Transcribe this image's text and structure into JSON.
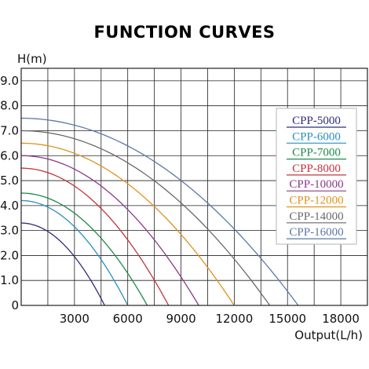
{
  "chart_data": {
    "type": "line",
    "title": "FUNCTION CURVES",
    "xlabel": "Output(L/h)",
    "ylabel": "H(m)",
    "xlim": [
      0,
      19500
    ],
    "ylim": [
      0,
      9.5
    ],
    "grid": true,
    "legend_position": "right",
    "x_ticks": [
      {
        "value": 3000,
        "label": "3000"
      },
      {
        "value": 6000,
        "label": "6000"
      },
      {
        "value": 9000,
        "label": "9000"
      },
      {
        "value": 12000,
        "label": "12000"
      },
      {
        "value": 15000,
        "label": "15000"
      },
      {
        "value": 18000,
        "label": "18000"
      }
    ],
    "y_ticks": [
      {
        "value": 0,
        "label": "0"
      },
      {
        "value": 1,
        "label": "1.0"
      },
      {
        "value": 2,
        "label": "2.0"
      },
      {
        "value": 3,
        "label": "3.0"
      },
      {
        "value": 4,
        "label": "4.0"
      },
      {
        "value": 5,
        "label": "5.0"
      },
      {
        "value": 6,
        "label": "6.0"
      },
      {
        "value": 7,
        "label": "7.0"
      },
      {
        "value": 8,
        "label": "8.0"
      },
      {
        "value": 9,
        "label": "9.0"
      }
    ],
    "series": [
      {
        "name": "CPP-5000",
        "color": "#2e2e78",
        "max_head": 3.3,
        "max_flow": 4700
      },
      {
        "name": "CPP-6000",
        "color": "#2a8fc0",
        "max_head": 4.2,
        "max_flow": 6000
      },
      {
        "name": "CPP-7000",
        "color": "#1f8a4c",
        "max_head": 4.5,
        "max_flow": 7100
      },
      {
        "name": "CPP-8000",
        "color": "#c2343a",
        "max_head": 5.5,
        "max_flow": 8300
      },
      {
        "name": "CPP-10000",
        "color": "#8a3a8a",
        "max_head": 6.0,
        "max_flow": 10000
      },
      {
        "name": "CPP-12000",
        "color": "#e0921e",
        "max_head": 6.5,
        "max_flow": 12000
      },
      {
        "name": "CPP-14000",
        "color": "#6a6a6a",
        "max_head": 7.0,
        "max_flow": 14000
      },
      {
        "name": "CPP-16000",
        "color": "#5b78a8",
        "max_head": 7.5,
        "max_flow": 15600
      }
    ]
  }
}
